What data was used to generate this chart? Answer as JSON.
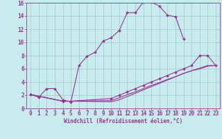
{
  "xlabel": "Windchill (Refroidissement éolien,°C)",
  "xlim": [
    -0.5,
    23.5
  ],
  "ylim": [
    0,
    16
  ],
  "xticks": [
    0,
    1,
    2,
    3,
    4,
    5,
    6,
    7,
    8,
    9,
    10,
    11,
    12,
    13,
    14,
    15,
    16,
    17,
    18,
    19,
    20,
    21,
    22,
    23
  ],
  "yticks": [
    0,
    2,
    4,
    6,
    8,
    10,
    12,
    14,
    16
  ],
  "background_color": "#c8ecec",
  "line_color": "#993399",
  "grid_color": "#99cccc",
  "curve1_x": [
    0,
    1,
    2,
    3,
    4,
    5,
    6,
    7,
    8,
    9,
    10,
    11,
    12,
    13,
    14,
    15,
    16,
    17,
    18,
    19
  ],
  "curve1_y": [
    2.1,
    1.7,
    3.0,
    3.0,
    1.3,
    1.0,
    6.5,
    7.9,
    8.5,
    10.2,
    10.7,
    11.8,
    14.5,
    14.5,
    16.1,
    16.1,
    15.5,
    14.1,
    13.9,
    10.5
  ],
  "curve2_x": [
    0,
    4,
    5,
    10,
    11,
    12,
    13,
    14,
    15,
    16,
    17,
    18,
    19,
    20,
    21,
    22,
    23
  ],
  "curve2_y": [
    2.1,
    1.1,
    1.1,
    1.5,
    2.0,
    2.5,
    3.0,
    3.5,
    4.0,
    4.5,
    5.0,
    5.5,
    6.0,
    6.5,
    8.0,
    8.0,
    6.5
  ],
  "curve3_x": [
    0,
    4,
    5,
    10,
    11,
    12,
    13,
    14,
    15,
    16,
    17,
    18,
    19,
    20,
    21,
    22,
    23
  ],
  "curve3_y": [
    2.1,
    1.1,
    1.1,
    1.2,
    1.6,
    2.1,
    2.5,
    3.0,
    3.5,
    3.9,
    4.4,
    4.8,
    5.3,
    5.7,
    6.1,
    6.5,
    6.5
  ],
  "curve4_x": [
    0,
    4,
    5,
    10,
    11,
    12,
    13,
    14,
    15,
    16,
    17,
    18,
    19,
    20,
    21,
    22,
    23
  ],
  "curve4_y": [
    2.1,
    1.1,
    1.1,
    1.0,
    1.3,
    1.8,
    2.3,
    2.8,
    3.3,
    3.8,
    4.3,
    4.8,
    5.3,
    5.7,
    6.0,
    6.4,
    6.5
  ],
  "tick_fontsize": 5.5,
  "xlabel_fontsize": 5.5,
  "linewidth": 0.8,
  "markersize": 2.0
}
